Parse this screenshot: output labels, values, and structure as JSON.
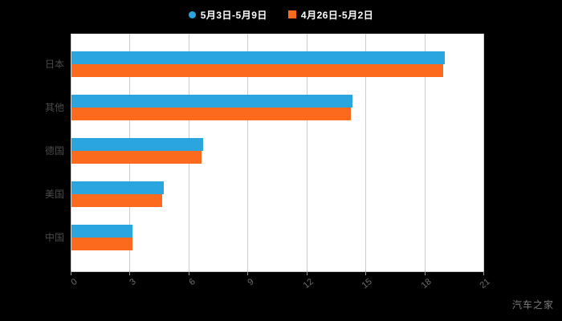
{
  "legend": [
    {
      "label": "5月3日-5月9日",
      "color": "#2AA5DE",
      "marker": "circle"
    },
    {
      "label": "4月26日-5月2日",
      "color": "#FC6A1E",
      "marker": "square"
    }
  ],
  "watermark": "汽车之家",
  "colors": {
    "background": "#000000",
    "plot_background": "#ffffff",
    "gridline": "#cccccc",
    "x_tick_label": "#6f6f6f",
    "y_tick_label": "#4a4a4a",
    "legend_text": "#ffffff"
  },
  "chart_data": {
    "type": "bar",
    "orientation": "horizontal",
    "title": "",
    "xlabel": "",
    "ylabel": "",
    "categories": [
      "日本",
      "其他",
      "德国",
      "美国",
      "中国"
    ],
    "series": [
      {
        "name": "5月3日-5月9日",
        "color": "#2AA5DE",
        "values": [
          19.0,
          14.3,
          6.7,
          4.7,
          3.1
        ]
      },
      {
        "name": "4月26日-5月2日",
        "color": "#FC6A1E",
        "values": [
          18.9,
          14.2,
          6.6,
          4.6,
          3.1
        ]
      }
    ],
    "xlim": [
      0,
      21
    ],
    "xticks": [
      0,
      3,
      6,
      9,
      12,
      15,
      18,
      21
    ],
    "grid": true,
    "legend_position": "top"
  }
}
